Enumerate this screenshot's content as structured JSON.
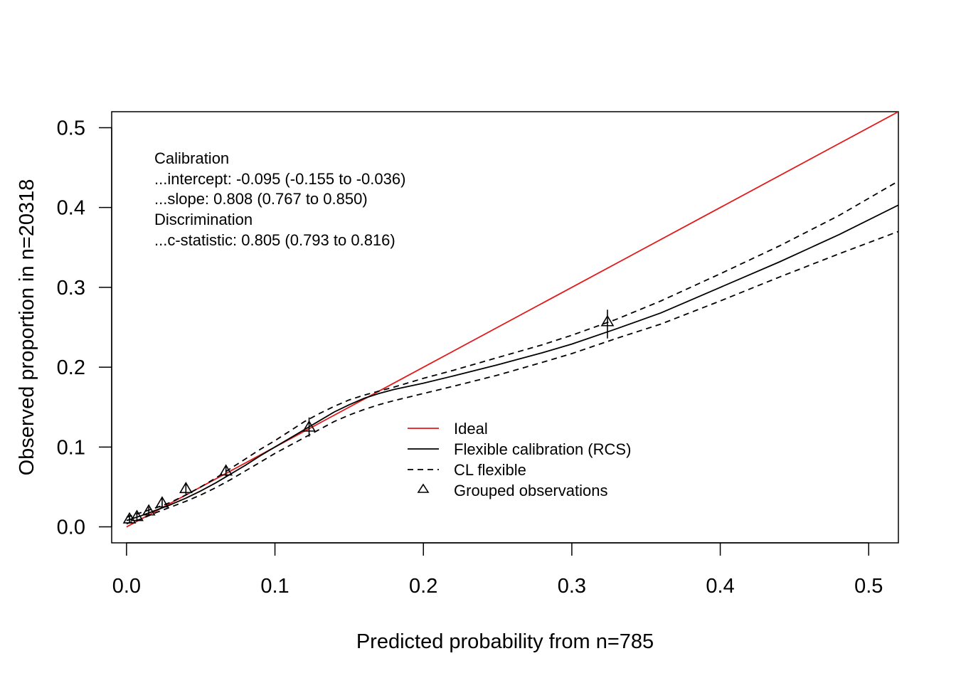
{
  "chart_data": {
    "type": "line",
    "xlabel": "Predicted probability from n=785",
    "ylabel": "Observed proportion in n=20318",
    "xlim": [
      -0.01,
      0.52
    ],
    "ylim": [
      -0.02,
      0.52
    ],
    "x_ticks": [
      0.0,
      0.1,
      0.2,
      0.3,
      0.4,
      0.5
    ],
    "x_tick_labels": [
      "0.0",
      "0.1",
      "0.2",
      "0.3",
      "0.4",
      "0.5"
    ],
    "y_ticks": [
      0.0,
      0.1,
      0.2,
      0.3,
      0.4,
      0.5
    ],
    "y_tick_labels": [
      "0.0",
      "0.1",
      "0.2",
      "0.3",
      "0.4",
      "0.5"
    ],
    "grid": false,
    "legend_position": "center-bottom",
    "annotations": [
      "Calibration",
      "...intercept: -0.095 (-0.155 to -0.036)",
      "...slope: 0.808 (0.767 to 0.850)",
      "Discrimination",
      "...c-statistic: 0.805 (0.793 to 0.816)"
    ],
    "series": [
      {
        "name": "Ideal",
        "style": "solid",
        "color": "#e31a1c",
        "x": [
          0.0,
          0.52
        ],
        "y": [
          0.0,
          0.52
        ]
      },
      {
        "name": "Flexible calibration (RCS)",
        "style": "solid",
        "color": "#000000",
        "x": [
          0.0,
          0.01,
          0.02,
          0.03,
          0.04,
          0.05,
          0.06,
          0.07,
          0.08,
          0.09,
          0.1,
          0.11,
          0.12,
          0.13,
          0.14,
          0.15,
          0.16,
          0.17,
          0.18,
          0.2,
          0.22,
          0.25,
          0.28,
          0.3,
          0.33,
          0.36,
          0.4,
          0.44,
          0.48,
          0.52
        ],
        "y": [
          0.008,
          0.014,
          0.021,
          0.028,
          0.036,
          0.045,
          0.055,
          0.066,
          0.077,
          0.089,
          0.1,
          0.111,
          0.122,
          0.133,
          0.144,
          0.153,
          0.161,
          0.167,
          0.172,
          0.18,
          0.189,
          0.203,
          0.218,
          0.229,
          0.248,
          0.268,
          0.3,
          0.332,
          0.366,
          0.403
        ]
      },
      {
        "name": "CL flexible",
        "style": "dashed",
        "color": "#000000",
        "bounds": "upper",
        "x": [
          0.0,
          0.01,
          0.02,
          0.03,
          0.04,
          0.05,
          0.06,
          0.07,
          0.08,
          0.09,
          0.1,
          0.11,
          0.12,
          0.13,
          0.14,
          0.15,
          0.16,
          0.17,
          0.18,
          0.2,
          0.22,
          0.25,
          0.28,
          0.3,
          0.33,
          0.36,
          0.4,
          0.44,
          0.48,
          0.52
        ],
        "y": [
          0.012,
          0.018,
          0.024,
          0.031,
          0.04,
          0.05,
          0.061,
          0.073,
          0.085,
          0.097,
          0.108,
          0.12,
          0.132,
          0.142,
          0.151,
          0.159,
          0.165,
          0.17,
          0.175,
          0.186,
          0.196,
          0.212,
          0.228,
          0.24,
          0.26,
          0.283,
          0.317,
          0.352,
          0.39,
          0.433
        ]
      },
      {
        "name": "CL flexible",
        "style": "dashed",
        "color": "#000000",
        "bounds": "lower",
        "x": [
          0.0,
          0.01,
          0.02,
          0.03,
          0.04,
          0.05,
          0.06,
          0.07,
          0.08,
          0.09,
          0.1,
          0.11,
          0.12,
          0.13,
          0.14,
          0.15,
          0.16,
          0.17,
          0.18,
          0.2,
          0.22,
          0.25,
          0.28,
          0.3,
          0.33,
          0.36,
          0.4,
          0.44,
          0.48,
          0.52
        ],
        "y": [
          0.004,
          0.01,
          0.018,
          0.025,
          0.032,
          0.04,
          0.049,
          0.059,
          0.07,
          0.081,
          0.092,
          0.102,
          0.112,
          0.122,
          0.132,
          0.14,
          0.147,
          0.153,
          0.158,
          0.167,
          0.176,
          0.19,
          0.206,
          0.217,
          0.236,
          0.254,
          0.283,
          0.313,
          0.342,
          0.37
        ]
      },
      {
        "name": "Grouped observations",
        "style": "triangle",
        "color": "#000000",
        "points": [
          {
            "x": 0.002,
            "y": 0.01,
            "lo": 0.005,
            "hi": 0.015
          },
          {
            "x": 0.007,
            "y": 0.013,
            "lo": 0.008,
            "hi": 0.018
          },
          {
            "x": 0.015,
            "y": 0.02,
            "lo": 0.015,
            "hi": 0.025
          },
          {
            "x": 0.024,
            "y": 0.03,
            "lo": 0.024,
            "hi": 0.036
          },
          {
            "x": 0.04,
            "y": 0.048,
            "lo": 0.041,
            "hi": 0.055
          },
          {
            "x": 0.067,
            "y": 0.07,
            "lo": 0.063,
            "hi": 0.077
          },
          {
            "x": 0.123,
            "y": 0.125,
            "lo": 0.113,
            "hi": 0.137
          },
          {
            "x": 0.324,
            "y": 0.257,
            "lo": 0.236,
            "hi": 0.272
          }
        ]
      }
    ]
  }
}
